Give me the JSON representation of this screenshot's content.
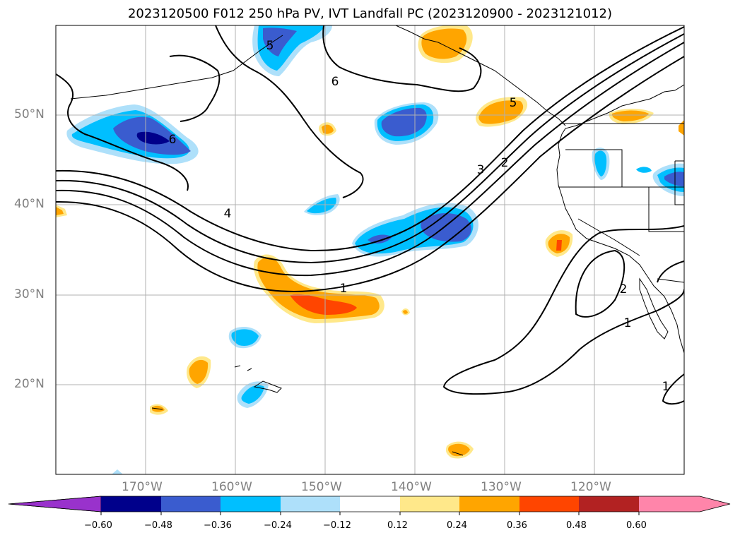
{
  "title": "2023120500 F012 250 hPa PV, IVT Landfall PC (2023120900 - 2023121012)",
  "map": {
    "lat_labels": [
      "50°N",
      "40°N",
      "30°N",
      "20°N"
    ],
    "lon_labels": [
      "170°W",
      "160°W",
      "150°W",
      "140°W",
      "130°W",
      "120°W"
    ],
    "pv_contour_labels": [
      "6",
      "6",
      "5",
      "5",
      "4",
      "3",
      "2",
      "1",
      "1",
      "2",
      "1"
    ]
  },
  "colorbar": {
    "ticks": [
      "−0.60",
      "−0.48",
      "−0.36",
      "−0.24",
      "−0.12",
      "0.12",
      "0.24",
      "0.36",
      "0.48",
      "0.60"
    ],
    "colors": [
      "#9932cc",
      "#00008b",
      "#3a5ccf",
      "#00bfff",
      "#aee0fa",
      "#ffffff",
      "#ffe88a",
      "#ffa500",
      "#ff4500",
      "#b22222",
      "#ff85aa"
    ]
  }
}
